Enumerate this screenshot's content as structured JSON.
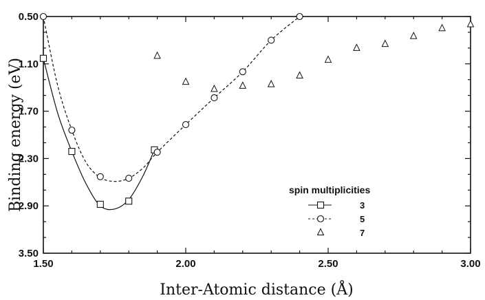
{
  "chart_data": {
    "type": "scatter",
    "xlabel": "Inter-Atomic distance (Å)",
    "ylabel": "Binding energy (eV)",
    "xlim": [
      1.5,
      3.0
    ],
    "ylim": [
      0.5,
      3.5
    ],
    "y_inverted": true,
    "grid": false,
    "x_ticks": [
      "1.50",
      "2.00",
      "2.50",
      "3.00"
    ],
    "y_ticks": [
      "0.50",
      "1.10",
      "1.70",
      "2.30",
      "2.90",
      "3.50"
    ],
    "legend": {
      "title": "spin multiplicities",
      "position": "lower-right"
    },
    "series": [
      {
        "name": "3",
        "marker": "square",
        "line": "solid",
        "x": [
          1.5,
          1.6,
          1.7,
          1.8,
          1.89
        ],
        "y": [
          1.03,
          2.21,
          2.88,
          2.84,
          2.19
        ],
        "curve_x": [
          1.5,
          1.55,
          1.6,
          1.65,
          1.7,
          1.75,
          1.8,
          1.85,
          1.89
        ],
        "curve_y": [
          1.03,
          1.72,
          2.21,
          2.62,
          2.9,
          2.94,
          2.82,
          2.52,
          2.19
        ]
      },
      {
        "name": "5",
        "marker": "circle",
        "line": "dashed",
        "x": [
          1.5,
          1.6,
          1.7,
          1.8,
          1.9,
          2.0,
          2.1,
          2.2,
          2.3,
          2.4
        ],
        "y": [
          0.5,
          1.94,
          2.53,
          2.55,
          2.22,
          1.87,
          1.53,
          1.2,
          0.8,
          0.5
        ],
        "curve_x": [
          1.5,
          1.55,
          1.6,
          1.65,
          1.7,
          1.75,
          1.8,
          1.85,
          1.9,
          2.0,
          2.1,
          2.2,
          2.3,
          2.4
        ],
        "curve_y": [
          0.5,
          1.37,
          1.94,
          2.35,
          2.54,
          2.59,
          2.55,
          2.42,
          2.22,
          1.87,
          1.53,
          1.2,
          0.8,
          0.5
        ]
      },
      {
        "name": "7",
        "marker": "triangle",
        "line": "none",
        "x": [
          1.9,
          2.0,
          2.1,
          2.2,
          2.3,
          2.4,
          2.5,
          2.6,
          2.7,
          2.8,
          2.9,
          3.0
        ],
        "y": [
          1.0,
          1.33,
          1.42,
          1.38,
          1.36,
          1.25,
          1.05,
          0.9,
          0.85,
          0.75,
          0.65,
          0.6
        ]
      }
    ]
  }
}
